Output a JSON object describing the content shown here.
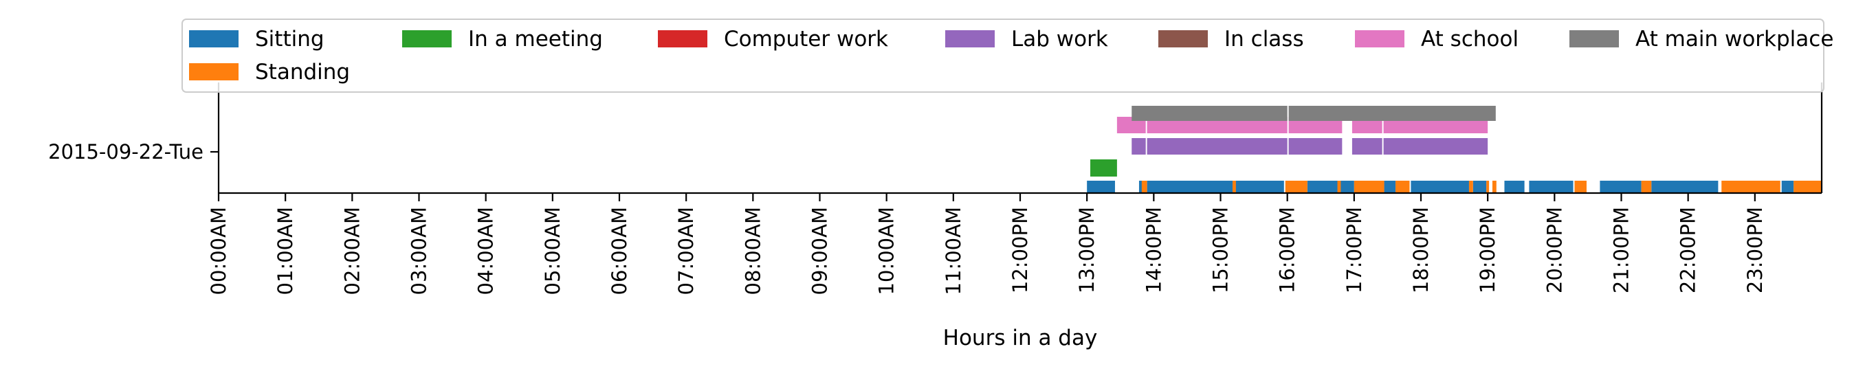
{
  "chart_data": {
    "type": "broken_barh",
    "title": "",
    "xlabel": "Hours in a day",
    "ylabel": "",
    "xlim": [
      0,
      24
    ],
    "y_category": "2015-09-22-Tue",
    "x_ticks": [
      {
        "value": 0,
        "label": "00:00AM"
      },
      {
        "value": 1,
        "label": "01:00AM"
      },
      {
        "value": 2,
        "label": "02:00AM"
      },
      {
        "value": 3,
        "label": "03:00AM"
      },
      {
        "value": 4,
        "label": "04:00AM"
      },
      {
        "value": 5,
        "label": "05:00AM"
      },
      {
        "value": 6,
        "label": "06:00AM"
      },
      {
        "value": 7,
        "label": "07:00AM"
      },
      {
        "value": 8,
        "label": "08:00AM"
      },
      {
        "value": 9,
        "label": "09:00AM"
      },
      {
        "value": 10,
        "label": "10:00AM"
      },
      {
        "value": 11,
        "label": "11:00AM"
      },
      {
        "value": 12,
        "label": "12:00PM"
      },
      {
        "value": 13,
        "label": "13:00PM"
      },
      {
        "value": 14,
        "label": "14:00PM"
      },
      {
        "value": 15,
        "label": "15:00PM"
      },
      {
        "value": 16,
        "label": "16:00PM"
      },
      {
        "value": 17,
        "label": "17:00PM"
      },
      {
        "value": 18,
        "label": "18:00PM"
      },
      {
        "value": 19,
        "label": "19:00PM"
      },
      {
        "value": 20,
        "label": "20:00PM"
      },
      {
        "value": 21,
        "label": "21:00PM"
      },
      {
        "value": 22,
        "label": "22:00PM"
      },
      {
        "value": 23,
        "label": "23:00PM"
      }
    ],
    "legend_position": "top",
    "series": [
      {
        "name": "Sitting",
        "color": "#1f77b4",
        "row": 0,
        "intervals": [
          [
            13.0,
            13.42
          ],
          [
            13.78,
            13.85
          ],
          [
            13.9,
            15.95
          ],
          [
            16.3,
            17.0
          ],
          [
            17.45,
            17.62
          ],
          [
            17.85,
            18.72
          ],
          [
            18.78,
            18.98
          ],
          [
            19.25,
            19.55
          ],
          [
            19.62,
            20.28
          ],
          [
            20.68,
            21.3
          ],
          [
            21.45,
            22.45
          ],
          [
            23.4,
            23.58
          ]
        ]
      },
      {
        "name": "Standing",
        "color": "#ff7f0e",
        "row": 0,
        "intervals": [
          [
            13.82,
            13.9
          ],
          [
            15.18,
            15.23
          ],
          [
            15.97,
            16.3
          ],
          [
            16.75,
            16.8
          ],
          [
            17.0,
            17.45
          ],
          [
            17.62,
            17.83
          ],
          [
            18.72,
            18.78
          ],
          [
            18.98,
            19.02
          ],
          [
            19.07,
            19.13
          ],
          [
            20.3,
            20.48
          ],
          [
            21.3,
            21.45
          ],
          [
            22.5,
            23.38
          ],
          [
            23.58,
            24.0
          ]
        ]
      },
      {
        "name": "In a meeting",
        "color": "#2ca02c",
        "row": 1,
        "intervals": [
          [
            13.05,
            13.45
          ]
        ]
      },
      {
        "name": "Computer work",
        "color": "#d62728",
        "row": 2,
        "intervals": []
      },
      {
        "name": "Lab work",
        "color": "#9467bd",
        "row": 2,
        "intervals": [
          [
            13.67,
            13.88
          ],
          [
            13.9,
            16.0
          ],
          [
            16.02,
            16.82
          ],
          [
            16.97,
            17.42
          ],
          [
            17.44,
            19.0
          ]
        ]
      },
      {
        "name": "In class",
        "color": "#8c564b",
        "row": 3,
        "intervals": []
      },
      {
        "name": "At school",
        "color": "#e377c2",
        "row": 3,
        "intervals": [
          [
            13.45,
            13.88
          ],
          [
            13.9,
            16.0
          ],
          [
            16.02,
            16.82
          ],
          [
            16.97,
            17.42
          ],
          [
            17.44,
            19.0
          ]
        ]
      },
      {
        "name": "At main workplace",
        "color": "#7f7f7f",
        "row": 4,
        "intervals": [
          [
            13.67,
            16.0
          ],
          [
            16.02,
            19.12
          ]
        ]
      }
    ]
  }
}
